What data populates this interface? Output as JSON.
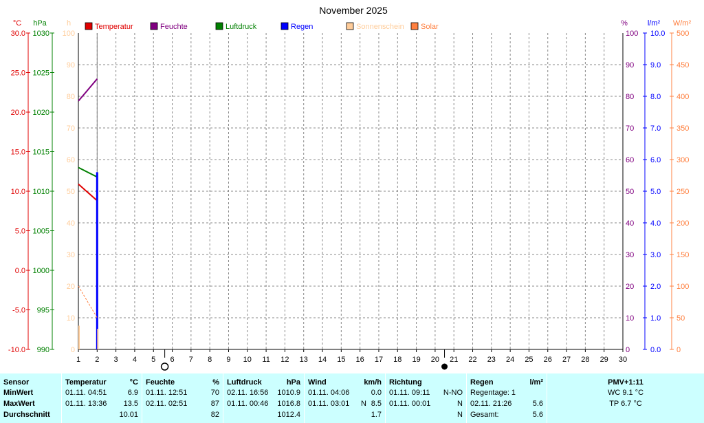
{
  "title": "November 2025",
  "units": {
    "temp": "°C",
    "pressure": "hPa",
    "sun": "h",
    "humidity": "%",
    "rain": "l/m²",
    "solar": "W/m²"
  },
  "legend": [
    {
      "label": "Temperatur",
      "color": "#e00000"
    },
    {
      "label": "Feuchte",
      "color": "#800080"
    },
    {
      "label": "Luftdruck",
      "color": "#008000"
    },
    {
      "label": "Regen",
      "color": "#0000ff"
    },
    {
      "label": "Sonnenschein",
      "color": "#ffcc99"
    },
    {
      "label": "Solar",
      "color": "#ff8040"
    }
  ],
  "axes": {
    "temp_ticks": [
      "30.0",
      "25.0",
      "20.0",
      "15.0",
      "10.0",
      "5.0",
      "0.0",
      "-5.0",
      "-10.0"
    ],
    "pressure_ticks": [
      "1030",
      "1025",
      "1020",
      "1015",
      "1010",
      "1005",
      "1000",
      "995",
      "990"
    ],
    "sun_ticks": [
      "100",
      "90",
      "80",
      "70",
      "60",
      "50",
      "40",
      "30",
      "20",
      "10",
      "0"
    ],
    "humidity_ticks": [
      "100",
      "90",
      "80",
      "70",
      "60",
      "50",
      "40",
      "30",
      "20",
      "10",
      "0"
    ],
    "rain_ticks": [
      "10.0",
      "9.0",
      "8.0",
      "7.0",
      "6.0",
      "5.0",
      "4.0",
      "3.0",
      "2.0",
      "1.0",
      "0.0"
    ],
    "solar_ticks": [
      "500",
      "450",
      "400",
      "350",
      "300",
      "250",
      "200",
      "150",
      "100",
      "50",
      "0"
    ],
    "days": [
      "1",
      "2",
      "3",
      "4",
      "5",
      "6",
      "7",
      "8",
      "9",
      "10",
      "11",
      "12",
      "13",
      "14",
      "15",
      "16",
      "17",
      "18",
      "19",
      "20",
      "21",
      "22",
      "23",
      "24",
      "25",
      "26",
      "27",
      "28",
      "29",
      "30"
    ]
  },
  "colors": {
    "temp": "#e00000",
    "pressure": "#008000",
    "humidity": "#800080",
    "rain": "#0000ff",
    "sun": "#ffcc99",
    "solar": "#ff8040",
    "grid": "#888888"
  },
  "chart_data": {
    "type": "line",
    "title": "November 2025",
    "xlim": [
      1,
      30
    ],
    "series": [
      {
        "name": "Temperatur",
        "axis": "temp",
        "ylim": [
          -10,
          30
        ],
        "points": [
          [
            1.0,
            10.9
          ],
          [
            2.0,
            8.8
          ]
        ]
      },
      {
        "name": "Feuchte",
        "axis": "humidity",
        "ylim": [
          0,
          100
        ],
        "points": [
          [
            1.0,
            78.5
          ],
          [
            2.0,
            85.5
          ]
        ]
      },
      {
        "name": "Luftdruck",
        "axis": "pressure",
        "ylim": [
          990,
          1030
        ],
        "points": [
          [
            1.0,
            1013.0
          ],
          [
            2.0,
            1011.8
          ]
        ]
      },
      {
        "name": "Regen",
        "axis": "rain",
        "ylim": [
          0,
          10
        ],
        "points": [
          [
            2.0,
            0.0
          ],
          [
            2.0,
            5.6
          ]
        ]
      },
      {
        "name": "Solar",
        "axis": "solar",
        "ylim": [
          0,
          500
        ],
        "points": [
          [
            1.0,
            100
          ],
          [
            2.0,
            50
          ]
        ]
      },
      {
        "name": "Sonnenschein",
        "axis": "sun",
        "ylim": [
          0,
          100
        ],
        "bars": [
          [
            1.0,
            7.5
          ],
          [
            2.0,
            6.5
          ]
        ]
      }
    ],
    "moon_phases": [
      {
        "day": 5.6,
        "phase": "full"
      },
      {
        "day": 20.5,
        "phase": "new"
      }
    ]
  },
  "table": {
    "sensor": {
      "header": "Sensor",
      "rows": [
        "MinWert",
        "MaxWert",
        "Durchschnitt"
      ]
    },
    "temperatur": {
      "header": "Temperatur",
      "unit": "°C",
      "min_time": "01.11.  04:51",
      "min_val": "6.9",
      "max_time": "01.11.  13:36",
      "max_val": "13.5",
      "avg": "10.01"
    },
    "feuchte": {
      "header": "Feuchte",
      "unit": "%",
      "min_time": "01.11.  12:51",
      "min_val": "70",
      "max_time": "02.11.  02:51",
      "max_val": "87",
      "avg": "82"
    },
    "luftdruck": {
      "header": "Luftdruck",
      "unit": "hPa",
      "min_time": "02.11.  16:56",
      "min_val": "1010.9",
      "max_time": "01.11.  00:46",
      "max_val": "1016.8",
      "avg": "1012.4"
    },
    "wind": {
      "header": "Wind",
      "unit": "km/h",
      "min_time": "01.11.  04:06",
      "min_val": "0.0",
      "max_time": "01.11.  03:01",
      "max_dir": "N",
      "max_val": "8.5",
      "avg": "1.7"
    },
    "richtung": {
      "header": "Richtung",
      "min_time": "01.11.  09:11",
      "min_val": "N-NO",
      "max_time": "01.11.  00:01",
      "max_val": "N",
      "avg": "N"
    },
    "regen": {
      "header": "Regen",
      "unit": "l/m²",
      "row1": "Regentage: 1",
      "row2_time": "02.11.  21:26",
      "row2_val": "5.6",
      "row3_label": "Gesamt:",
      "row3_val": "5.6"
    },
    "pmv": {
      "header": "PMV+1:11",
      "wc": "WC 9.1 °C",
      "tp": "TP 6.7 °C"
    }
  }
}
